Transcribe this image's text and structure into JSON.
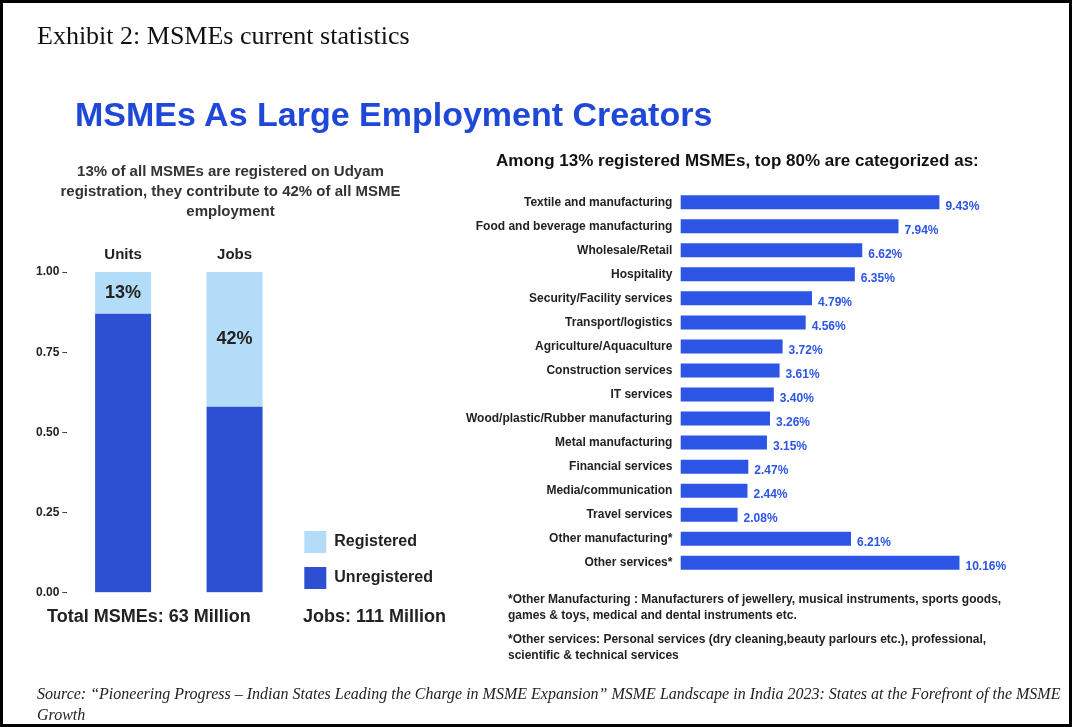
{
  "chart_data": [
    {
      "type": "bar",
      "title": "Exhibit 2: MSMEs current statistics",
      "subtitle": "MSMEs As Large Employment Creators",
      "categories": [
        "Units",
        "Jobs"
      ],
      "stacked": true,
      "series": [
        {
          "name": "Unregistered",
          "color": "#2d4fd2",
          "values": [
            0.87,
            0.58
          ],
          "value_labels": [
            null,
            null
          ]
        },
        {
          "name": "Registered",
          "color": "#b3dcf9",
          "values": [
            0.13,
            0.42
          ],
          "value_labels": [
            "13%",
            "42%"
          ]
        }
      ],
      "ylim": [
        0,
        1
      ],
      "yticks": [
        {
          "value": 0,
          "label": "0.00"
        },
        {
          "value": 0.25,
          "label": "0.25"
        },
        {
          "value": 0.5,
          "label": "0.50"
        },
        {
          "value": 0.75,
          "label": "0.75"
        },
        {
          "value": 1,
          "label": "1.00"
        }
      ],
      "grid": false,
      "legend": "bottom right",
      "annotations": [
        "13% of all MSMEs are registered on Udyam registration, they contribute to 42% of all MSME employment",
        "Total MSMEs: 63 Million",
        "Jobs: 111 Million"
      ]
    },
    {
      "type": "bar",
      "orientation": "horizontal",
      "title": "Among 13% registered MSMEs, top 80% are categorized as:",
      "categories": [
        "Textile and manufacturing",
        "Food and beverage manufacturing",
        "Wholesale/Retail",
        "Hospitality",
        "Security/Facility services",
        "Transport/logistics",
        "Agriculture/Aquaculture",
        "Construction services",
        "IT services",
        "Wood/plastic/Rubber manufacturing",
        "Metal manufacturing",
        "Financial services",
        "Media/communication",
        "Travel services",
        "Other manufacturing*",
        "Other services*"
      ],
      "values": [
        9.43,
        7.94,
        6.62,
        6.35,
        4.79,
        4.56,
        3.72,
        3.61,
        3.4,
        3.26,
        3.15,
        2.47,
        2.44,
        2.08,
        6.21,
        10.16
      ],
      "value_labels": [
        "9.43%",
        "7.94%",
        "6.62%",
        "6.35%",
        "4.79%",
        "4.56%",
        "3.72%",
        "3.61%",
        "3.40%",
        "3.26%",
        "3.15%",
        "2.47%",
        "2.44%",
        "2.08%",
        "6.21%",
        "10.16%"
      ],
      "color": "#2c55e6",
      "grid": false,
      "legend": false,
      "tick_labels": "y",
      "annotations": [
        "*Other Manufacturing :  Manufacturers of jewellery, musical instruments, sports goods, games & toys, medical and dental instruments etc.",
        "*Other services: Personal services (dry cleaning,beauty parlours etc.), professional, scientific & technical services",
        "Source: “Pioneering Progress – Indian States Leading the Charge in MSME Expansion” MSME Landscape in India 2023: States at the Forefront of the MSME Growth"
      ]
    }
  ]
}
